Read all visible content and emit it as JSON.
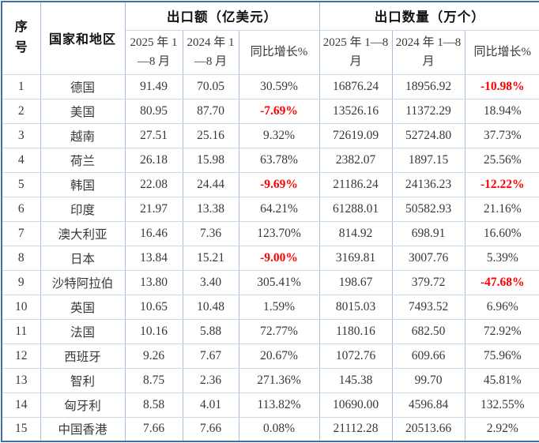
{
  "table": {
    "header": {
      "index": "序号",
      "country": "国家和地区",
      "group_value": "出口额（亿美元）",
      "group_qty": "出口数量（万个）",
      "sub_2025": "2025 年 1—8 月",
      "sub_2024": "2024 年 1—8 月",
      "sub_yoy": "同比增长%"
    },
    "rows": [
      {
        "no": "1",
        "country": "德国",
        "v2025": "91.49",
        "v2024": "70.05",
        "vyoy": "30.59%",
        "q2025": "16876.24",
        "q2024": "18956.92",
        "qyoy": "-10.98%"
      },
      {
        "no": "2",
        "country": "美国",
        "v2025": "80.95",
        "v2024": "87.70",
        "vyoy": "-7.69%",
        "q2025": "13526.16",
        "q2024": "11372.29",
        "qyoy": "18.94%"
      },
      {
        "no": "3",
        "country": "越南",
        "v2025": "27.51",
        "v2024": "25.16",
        "vyoy": "9.32%",
        "q2025": "72619.09",
        "q2024": "52724.80",
        "qyoy": "37.73%"
      },
      {
        "no": "4",
        "country": "荷兰",
        "v2025": "26.18",
        "v2024": "15.98",
        "vyoy": "63.78%",
        "q2025": "2382.07",
        "q2024": "1897.15",
        "qyoy": "25.56%"
      },
      {
        "no": "5",
        "country": "韩国",
        "v2025": "22.08",
        "v2024": "24.44",
        "vyoy": "-9.69%",
        "q2025": "21186.24",
        "q2024": "24136.23",
        "qyoy": "-12.22%"
      },
      {
        "no": "6",
        "country": "印度",
        "v2025": "21.97",
        "v2024": "13.38",
        "vyoy": "64.21%",
        "q2025": "61288.01",
        "q2024": "50582.93",
        "qyoy": "21.16%"
      },
      {
        "no": "7",
        "country": "澳大利亚",
        "v2025": "16.46",
        "v2024": "7.36",
        "vyoy": "123.70%",
        "q2025": "814.92",
        "q2024": "698.91",
        "qyoy": "16.60%"
      },
      {
        "no": "8",
        "country": "日本",
        "v2025": "13.84",
        "v2024": "15.21",
        "vyoy": "-9.00%",
        "q2025": "3169.81",
        "q2024": "3007.76",
        "qyoy": "5.39%"
      },
      {
        "no": "9",
        "country": "沙特阿拉伯",
        "v2025": "13.80",
        "v2024": "3.40",
        "vyoy": "305.41%",
        "q2025": "198.67",
        "q2024": "379.72",
        "qyoy": "-47.68%"
      },
      {
        "no": "10",
        "country": "英国",
        "v2025": "10.65",
        "v2024": "10.48",
        "vyoy": "1.59%",
        "q2025": "8015.03",
        "q2024": "7493.52",
        "qyoy": "6.96%"
      },
      {
        "no": "11",
        "country": "法国",
        "v2025": "10.16",
        "v2024": "5.88",
        "vyoy": "72.77%",
        "q2025": "1180.16",
        "q2024": "682.50",
        "qyoy": "72.92%"
      },
      {
        "no": "12",
        "country": "西班牙",
        "v2025": "9.26",
        "v2024": "7.67",
        "vyoy": "20.67%",
        "q2025": "1072.76",
        "q2024": "609.66",
        "qyoy": "75.96%"
      },
      {
        "no": "13",
        "country": "智利",
        "v2025": "8.75",
        "v2024": "2.36",
        "vyoy": "271.36%",
        "q2025": "145.38",
        "q2024": "99.70",
        "qyoy": "45.81%"
      },
      {
        "no": "14",
        "country": "匈牙利",
        "v2025": "8.58",
        "v2024": "4.01",
        "vyoy": "113.82%",
        "q2025": "10690.00",
        "q2024": "4596.84",
        "qyoy": "132.55%"
      },
      {
        "no": "15",
        "country": "中国香港",
        "v2025": "7.66",
        "v2024": "7.66",
        "vyoy": "0.08%",
        "q2025": "21112.28",
        "q2024": "20513.66",
        "qyoy": "2.92%"
      }
    ]
  },
  "colors": {
    "border_outer": "#426FA5",
    "border_inner_vertical": "#A9BDD8",
    "border_inner_horizontal": "#CBD8EA",
    "text": "#383838",
    "negative_value": "#FF0000"
  }
}
